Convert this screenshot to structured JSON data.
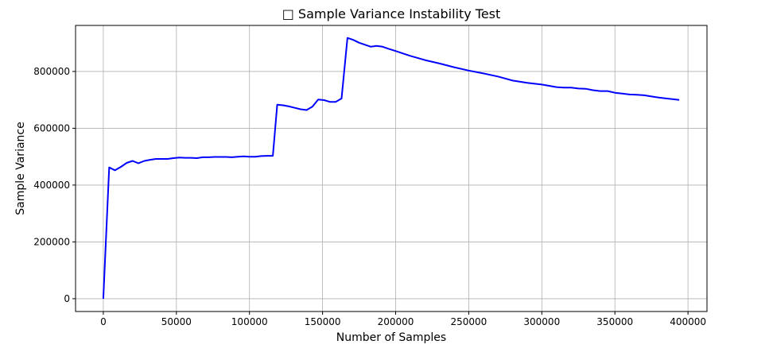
{
  "chart_data": {
    "type": "line",
    "title": "□ Sample Variance Instability Test",
    "xlabel": "Number of Samples",
    "ylabel": "Sample Variance",
    "xlim": [
      -19000,
      413000
    ],
    "ylim": [
      -45000,
      962000
    ],
    "xticks": [
      0,
      50000,
      100000,
      150000,
      200000,
      250000,
      300000,
      350000,
      400000
    ],
    "yticks": [
      0,
      200000,
      400000,
      600000,
      800000
    ],
    "grid": true,
    "line_color": "#0000ff",
    "series": [
      {
        "x": [
          0,
          4000,
          8000,
          12000,
          16000,
          20000,
          24000,
          28000,
          32000,
          36000,
          40000,
          44000,
          48000,
          52000,
          56000,
          60000,
          64000,
          68000,
          72000,
          76000,
          80000,
          84000,
          88000,
          92000,
          96000,
          100000,
          104000,
          108000,
          112000,
          116000,
          119000,
          123000,
          127000,
          131000,
          135000,
          139000,
          143000,
          147000,
          151000,
          155000,
          159000,
          163000,
          167000,
          171000,
          175000,
          179000,
          183000,
          187000,
          191000,
          195000,
          200000,
          210000,
          220000,
          230000,
          240000,
          250000,
          260000,
          270000,
          280000,
          290000,
          300000,
          310000,
          315000,
          320000,
          325000,
          330000,
          335000,
          340000,
          345000,
          350000,
          355000,
          360000,
          365000,
          370000,
          375000,
          380000,
          385000,
          390000,
          394000
        ],
        "y": [
          0,
          462000,
          452000,
          464000,
          478000,
          485000,
          477000,
          485000,
          489000,
          492000,
          492000,
          492000,
          495000,
          497000,
          496000,
          496000,
          495000,
          498000,
          498000,
          499000,
          499000,
          499000,
          498000,
          500000,
          501000,
          500000,
          500000,
          502000,
          503000,
          503000,
          683000,
          681000,
          677000,
          672000,
          667000,
          664000,
          676000,
          701000,
          699000,
          693000,
          693000,
          705000,
          918000,
          911000,
          901000,
          894000,
          887000,
          890000,
          887000,
          880000,
          872000,
          855000,
          840000,
          828000,
          815000,
          803000,
          793000,
          782000,
          768000,
          760000,
          754000,
          745000,
          743000,
          743000,
          740000,
          739000,
          734000,
          731000,
          731000,
          725000,
          722000,
          719000,
          718000,
          716000,
          712000,
          708000,
          705000,
          702000,
          700000
        ]
      }
    ]
  }
}
